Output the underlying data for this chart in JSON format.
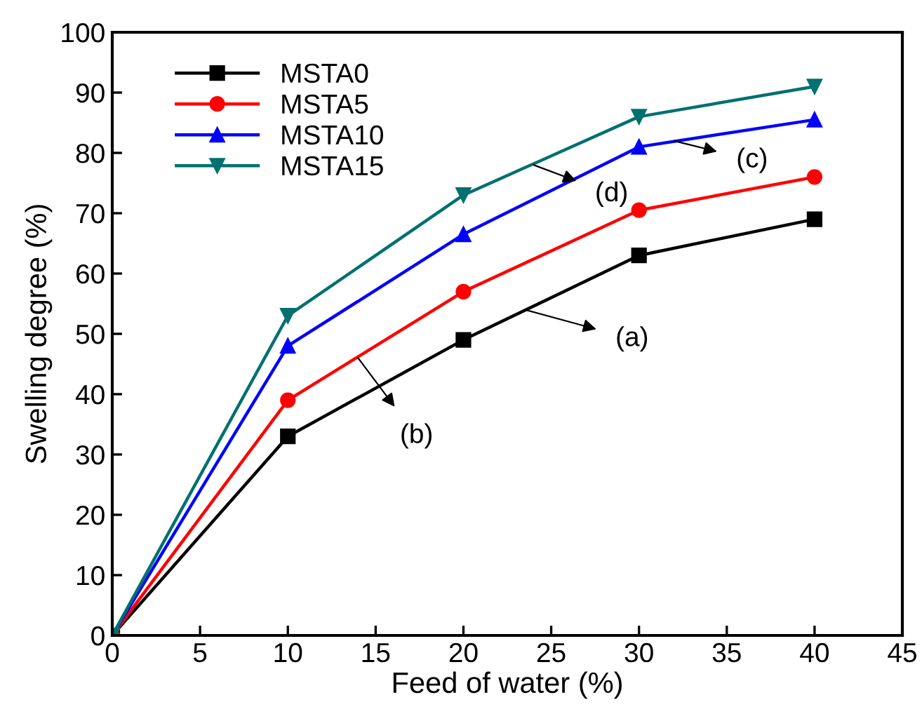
{
  "chart_data": {
    "type": "line",
    "xlabel": "Feed of water (%)",
    "ylabel": "Swelling degree (%)",
    "x": [
      0,
      10,
      20,
      30,
      40
    ],
    "series": [
      {
        "name": "MSTA0",
        "color": "#000000",
        "marker": "square",
        "values": [
          0,
          33,
          49,
          63,
          69
        ]
      },
      {
        "name": "MSTA5",
        "color": "#ff0000",
        "marker": "circle",
        "values": [
          0,
          39,
          57,
          70.5,
          76
        ]
      },
      {
        "name": "MSTA10",
        "color": "#0000ff",
        "marker": "triangle",
        "values": [
          0,
          48,
          66.5,
          81,
          85.5
        ]
      },
      {
        "name": "MSTA15",
        "color": "#007070",
        "marker": "triangle_down",
        "values": [
          0,
          53,
          73,
          86,
          91
        ]
      }
    ],
    "annotations": [
      {
        "text": "(a)",
        "x": 23.5,
        "y": 54
      },
      {
        "text": "(b)",
        "x": 14,
        "y": 46
      },
      {
        "text": "(c)",
        "x": 32,
        "y": 82
      },
      {
        "text": "(d)",
        "x": 24,
        "y": 78
      }
    ],
    "xlim": [
      0,
      45
    ],
    "xticks": [
      0,
      5,
      10,
      15,
      20,
      25,
      30,
      35,
      40,
      45
    ],
    "ylim": [
      0,
      100
    ],
    "yticks": [
      0,
      10,
      20,
      30,
      40,
      50,
      60,
      70,
      80,
      90,
      100
    ],
    "grid": false,
    "legend": "top left",
    "line_style": "solid"
  }
}
